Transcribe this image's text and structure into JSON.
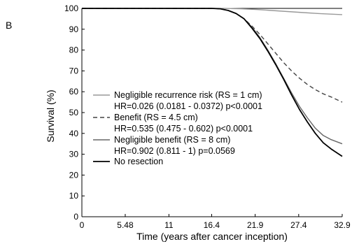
{
  "panel_label": "B",
  "chart_data": {
    "type": "line",
    "title": "",
    "xlabel": "Time (years after cancer inception)",
    "ylabel": "Survival (%)",
    "xlim": [
      0,
      32.9
    ],
    "ylim": [
      0,
      100
    ],
    "xticks": [
      0,
      5.48,
      11,
      16.4,
      21.9,
      27.4,
      32.9
    ],
    "xtick_labels": [
      "0",
      "5.48",
      "11",
      "16.4",
      "21.9",
      "27.4",
      "32.9"
    ],
    "yticks": [
      0,
      10,
      20,
      30,
      40,
      50,
      60,
      70,
      80,
      90,
      100
    ],
    "ytick_labels": [
      "0",
      "10",
      "20",
      "30",
      "40",
      "50",
      "60",
      "70",
      "80",
      "90",
      "100"
    ],
    "grid": false,
    "legend_position": "center-left",
    "series": [
      {
        "name": "Negligible recurrence risk (RS = 1 cm)",
        "stat": "HR=0.026 (0.0181 - 0.0372) p<0.0001",
        "color": "#999999",
        "dash": "solid",
        "x": [
          0,
          5,
          10,
          15,
          18,
          20,
          22,
          24,
          26,
          28,
          30,
          32.9
        ],
        "y": [
          100,
          100,
          100,
          100,
          100,
          99.8,
          99.5,
          99,
          98.5,
          98,
          97.5,
          97
        ]
      },
      {
        "name": "Benefit (RS = 4.5 cm)",
        "stat": "HR=0.535 (0.475 - 0.602) p<0.0001",
        "color": "#444444",
        "dash": "dashed",
        "x": [
          0,
          5,
          10,
          15,
          16.4,
          17.5,
          18.5,
          19.5,
          20.5,
          21.5,
          22.5,
          23.5,
          24.5,
          25.5,
          26.5,
          27.5,
          28.5,
          29.5,
          30.5,
          31.5,
          32.9
        ],
        "y": [
          100,
          100,
          100,
          100,
          100,
          99.8,
          99,
          97.5,
          95,
          91.5,
          87.5,
          83,
          78.5,
          74,
          70,
          66.5,
          63.5,
          61,
          59,
          57.5,
          55
        ]
      },
      {
        "name": "Negligible benefit (RS = 8 cm)",
        "stat": "HR=0.902 (0.811 - 1) p=0.0569",
        "color": "#666666",
        "dash": "solid",
        "x": [
          0,
          5,
          10,
          15,
          16.4,
          17.5,
          18.5,
          19.5,
          20.5,
          21.5,
          22.5,
          23.5,
          24.5,
          25.5,
          26.5,
          27.5,
          28.5,
          29.5,
          30.5,
          31.5,
          32.9
        ],
        "y": [
          100,
          100,
          100,
          100,
          100,
          99.8,
          99,
          97.5,
          95,
          91,
          86,
          80,
          73.5,
          66.5,
          59.5,
          53,
          47.5,
          42.5,
          39,
          37,
          35
        ]
      },
      {
        "name": "No resection",
        "stat": "",
        "color": "#000000",
        "dash": "solid",
        "x": [
          0,
          5,
          10,
          15,
          16.4,
          17.5,
          18.5,
          19.5,
          20.5,
          21.5,
          22.5,
          23.5,
          24.5,
          25.5,
          26.5,
          27.5,
          28.5,
          29.5,
          30.5,
          31.5,
          32.9
        ],
        "y": [
          100,
          100,
          100,
          100,
          100,
          99.8,
          99,
          97.5,
          95,
          90.5,
          85.5,
          79.5,
          73,
          66,
          58.5,
          51.5,
          45.5,
          40,
          35.5,
          32.5,
          29
        ]
      }
    ]
  }
}
